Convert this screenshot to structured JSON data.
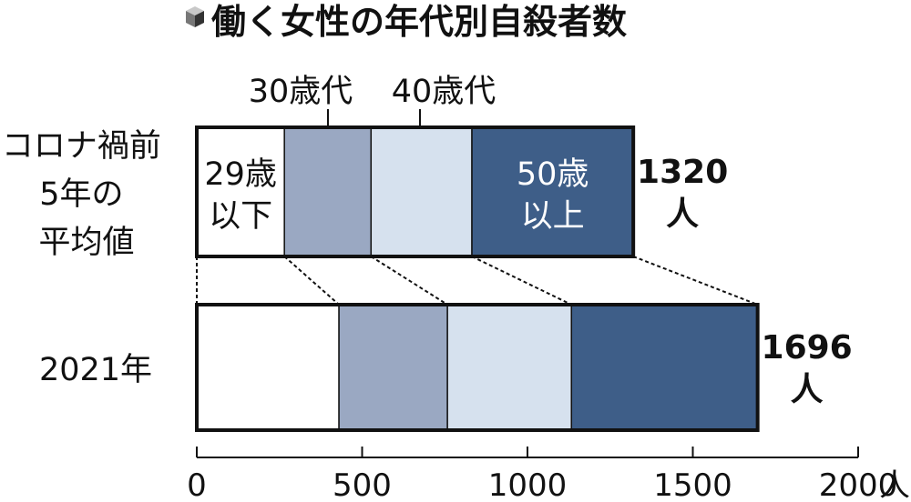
{
  "title": "働く女性の年代別自殺者数",
  "colors": {
    "29歳以下": "#ffffff",
    "30歳代": "#9aa8c2",
    "40歳代": "#d6e1ee",
    "50歳以上": "#3e5e88",
    "outline": "#111111"
  },
  "chart_data": {
    "type": "bar",
    "orientation": "horizontal",
    "stacked": true,
    "title": "働く女性の年代別自殺者数",
    "categories": [
      "コロナ禍前5年の平均値",
      "2021年"
    ],
    "category_label_lines": [
      [
        "コロナ禍前",
        "5年の",
        "平均値"
      ],
      [
        "2021年"
      ]
    ],
    "series": [
      {
        "name": "29歳以下",
        "name_lines": [
          "29歳",
          "以下"
        ],
        "values": [
          265,
          430
        ]
      },
      {
        "name": "30歳代",
        "values": [
          262,
          328
        ]
      },
      {
        "name": "40歳代",
        "values": [
          305,
          375
        ]
      },
      {
        "name": "50歳以上",
        "name_lines": [
          "50歳",
          "以上"
        ],
        "values": [
          488,
          563
        ]
      }
    ],
    "totals": [
      1320,
      1696
    ],
    "total_unit": "人",
    "xlim": [
      0,
      2000
    ],
    "xticks": [
      0,
      500,
      1000,
      1500,
      2000
    ],
    "xtick_labels": [
      "0",
      "500",
      "1000",
      "1500",
      "2000"
    ],
    "xunit": "人",
    "grid": false
  }
}
